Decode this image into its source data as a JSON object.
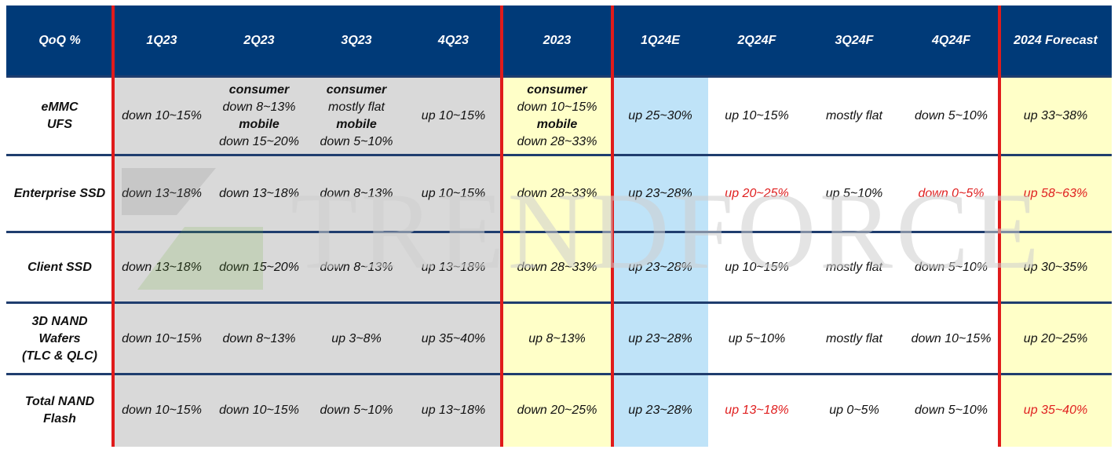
{
  "watermark": {
    "text": "TRENDFORCE"
  },
  "colors": {
    "header_bg": "#003a78",
    "actual_bg": "#d9d9d9",
    "annual_bg": "#ffffc8",
    "estimate_bg": "#bfe3f8",
    "forecast_bg": "#ffffff",
    "divider_red": "#e01b1b",
    "row_divider": "#1f3d6e",
    "highlight_text": "#e02020"
  },
  "chart_data": {
    "type": "table",
    "corner_label": "QoQ %",
    "columns": [
      "1Q23",
      "2Q23",
      "3Q23",
      "4Q23",
      "2023",
      "1Q24E",
      "2Q24F",
      "3Q24F",
      "4Q24F",
      "2024 Forecast"
    ],
    "rows": [
      {
        "label_lines": [
          "eMMC",
          "UFS"
        ],
        "cells": [
          [
            {
              "t": "down 10~15%"
            }
          ],
          [
            {
              "t": "consumer",
              "b": true
            },
            {
              "t": "down 8~13%"
            },
            {
              "t": "mobile",
              "b": true
            },
            {
              "t": "down 15~20%"
            }
          ],
          [
            {
              "t": "consumer",
              "b": true
            },
            {
              "t": "mostly flat"
            },
            {
              "t": "mobile",
              "b": true
            },
            {
              "t": "down 5~10%"
            }
          ],
          [
            {
              "t": "up 10~15%"
            }
          ],
          [
            {
              "t": "consumer",
              "b": true
            },
            {
              "t": "down 10~15%"
            },
            {
              "t": "mobile",
              "b": true
            },
            {
              "t": "down 28~33%"
            }
          ],
          [
            {
              "t": "up 25~30%"
            }
          ],
          [
            {
              "t": "up 10~15%"
            }
          ],
          [
            {
              "t": "mostly flat"
            }
          ],
          [
            {
              "t": "down 5~10%"
            }
          ],
          [
            {
              "t": "up 33~38%"
            }
          ]
        ]
      },
      {
        "label_lines": [
          "Enterprise SSD"
        ],
        "cells": [
          [
            {
              "t": "down 13~18%"
            }
          ],
          [
            {
              "t": "down 13~18%"
            }
          ],
          [
            {
              "t": "down 8~13%"
            }
          ],
          [
            {
              "t": "up 10~15%"
            }
          ],
          [
            {
              "t": "down 28~33%"
            }
          ],
          [
            {
              "t": "up 23~28%"
            }
          ],
          [
            {
              "t": "up 20~25%",
              "r": true
            }
          ],
          [
            {
              "t": "up 5~10%"
            }
          ],
          [
            {
              "t": "down 0~5%",
              "r": true
            }
          ],
          [
            {
              "t": "up 58~63%",
              "r": true
            }
          ]
        ]
      },
      {
        "label_lines": [
          "Client SSD"
        ],
        "cells": [
          [
            {
              "t": "down 13~18%"
            }
          ],
          [
            {
              "t": "down 15~20%"
            }
          ],
          [
            {
              "t": "down 8~13%"
            }
          ],
          [
            {
              "t": "up 13~18%"
            }
          ],
          [
            {
              "t": "down 28~33%"
            }
          ],
          [
            {
              "t": "up 23~28%"
            }
          ],
          [
            {
              "t": "up 10~15%"
            }
          ],
          [
            {
              "t": "mostly flat"
            }
          ],
          [
            {
              "t": "down 5~10%"
            }
          ],
          [
            {
              "t": "up 30~35%"
            }
          ]
        ]
      },
      {
        "label_lines": [
          "3D NAND",
          "Wafers",
          "(TLC & QLC)"
        ],
        "cells": [
          [
            {
              "t": "down 10~15%"
            }
          ],
          [
            {
              "t": "down 8~13%"
            }
          ],
          [
            {
              "t": "up 3~8%"
            }
          ],
          [
            {
              "t": "up 35~40%"
            }
          ],
          [
            {
              "t": "up 8~13%"
            }
          ],
          [
            {
              "t": "up 23~28%"
            }
          ],
          [
            {
              "t": "up 5~10%"
            }
          ],
          [
            {
              "t": "mostly flat"
            }
          ],
          [
            {
              "t": "down 10~15%"
            }
          ],
          [
            {
              "t": "up 20~25%"
            }
          ]
        ]
      },
      {
        "label_lines": [
          "Total NAND",
          "Flash"
        ],
        "cells": [
          [
            {
              "t": "down 10~15%"
            }
          ],
          [
            {
              "t": "down 10~15%"
            }
          ],
          [
            {
              "t": "down 5~10%"
            }
          ],
          [
            {
              "t": "up 13~18%"
            }
          ],
          [
            {
              "t": "down 20~25%"
            }
          ],
          [
            {
              "t": "up 23~28%"
            }
          ],
          [
            {
              "t": "up 13~18%",
              "r": true
            }
          ],
          [
            {
              "t": "up 0~5%"
            }
          ],
          [
            {
              "t": "down 5~10%"
            }
          ],
          [
            {
              "t": "up 35~40%",
              "r": true
            }
          ]
        ]
      }
    ]
  }
}
